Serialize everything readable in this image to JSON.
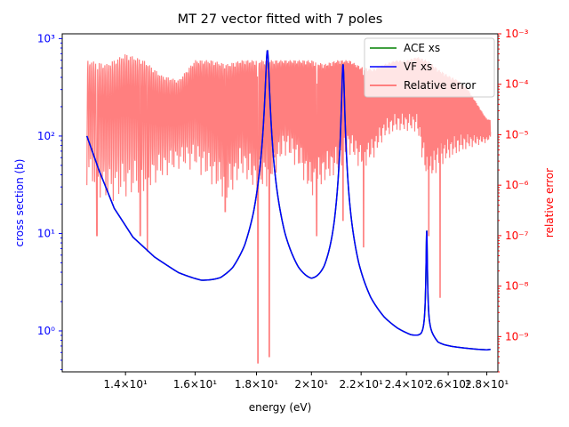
{
  "chart_data": {
    "type": "line",
    "title": "MT 27 vector fitted with 7 poles",
    "xlabel": "energy (eV)",
    "ylabel_left": "cross section (b)",
    "ylabel_right": "relative error",
    "x_scale": "log",
    "y_left_scale": "log",
    "y_right_scale": "log",
    "xlim": [
      12.4,
      28.6
    ],
    "ylim_left": [
      0.38,
      1120
    ],
    "ylim_right": [
      2e-10,
      0.001
    ],
    "left_axis_color": "#0000ff",
    "right_axis_color": "#ff0000",
    "x_ticks": [
      {
        "value": 14,
        "label": "1.4×10¹"
      },
      {
        "value": 16,
        "label": "1.6×10¹"
      },
      {
        "value": 18,
        "label": "1.8×10¹"
      },
      {
        "value": 20,
        "label": "2×10¹"
      },
      {
        "value": 22,
        "label": "2.2×10¹"
      },
      {
        "value": 24,
        "label": "2.4×10¹"
      },
      {
        "value": 26,
        "label": "2.6×10¹"
      },
      {
        "value": 28,
        "label": "2.8×10¹"
      }
    ],
    "y_left_ticks": [
      {
        "value": 1,
        "label": "10⁰"
      },
      {
        "value": 10,
        "label": "10¹"
      },
      {
        "value": 100,
        "label": "10²"
      },
      {
        "value": 1000,
        "label": "10³"
      }
    ],
    "y_right_ticks": [
      {
        "value": 1e-09,
        "label": "10⁻⁹"
      },
      {
        "value": 1e-08,
        "label": "10⁻⁸"
      },
      {
        "value": 1e-07,
        "label": "10⁻⁷"
      },
      {
        "value": 1e-06,
        "label": "10⁻⁶"
      },
      {
        "value": 1e-05,
        "label": "10⁻⁵"
      },
      {
        "value": 0.0001,
        "label": "10⁻⁴"
      },
      {
        "value": 0.001,
        "label": "10⁻³"
      }
    ],
    "legend": {
      "placement": "upper-right",
      "entries": [
        {
          "name": "ACE xs",
          "color": "#008000"
        },
        {
          "name": "VF xs",
          "color": "#0000ff"
        },
        {
          "name": "Relative error",
          "color": "#ff0000"
        }
      ]
    },
    "xs_baseline": {
      "x": [
        13.0,
        13.3,
        13.7,
        14.2,
        14.8,
        15.5,
        16.2,
        16.8,
        17.2,
        17.6,
        17.9,
        18.1,
        18.3,
        18.6,
        19.0,
        19.5,
        20.0,
        20.5,
        20.9,
        21.2,
        21.5,
        21.9,
        22.4,
        23.0,
        23.6,
        24.2,
        24.7,
        25.1,
        25.5,
        25.8,
        26.2,
        26.8,
        27.5,
        28.0,
        28.2
      ],
      "y": [
        100,
        45,
        18,
        9,
        5.5,
        3.6,
        2.7,
        2.4,
        2.5,
        3.2,
        5.2,
        9.5,
        20,
        7,
        3.2,
        2.0,
        1.6,
        1.7,
        2.4,
        5.5,
        3.0,
        1.6,
        1.05,
        0.82,
        0.72,
        0.67,
        0.68,
        0.78,
        0.62,
        0.6,
        0.59,
        0.585,
        0.58,
        0.58,
        0.59
      ]
    },
    "resonances": [
      {
        "energy": 18.38,
        "peak": 740,
        "width": 0.12
      },
      {
        "energy": 21.25,
        "peak": 540,
        "width": 0.1
      },
      {
        "energy": 24.95,
        "peak": 10,
        "width": 0.05
      }
    ],
    "relative_error_envelope": {
      "x": [
        13.0,
        13.5,
        14.0,
        14.5,
        15.0,
        15.5,
        16.0,
        16.5,
        17.0,
        17.5,
        18.0,
        18.5,
        19.0,
        19.5,
        20.0,
        20.5,
        21.0,
        21.5,
        22.0,
        22.5,
        23.0,
        23.5,
        24.0,
        24.5,
        25.0,
        25.5,
        26.0,
        26.5,
        27.0,
        27.5,
        28.0,
        28.2
      ],
      "upper": [
        0.0003,
        0.00025,
        0.0004,
        0.0003,
        0.00015,
        0.00012,
        0.0003,
        0.0003,
        0.00025,
        0.0003,
        0.0003,
        0.0003,
        0.0003,
        0.0003,
        0.0003,
        0.00025,
        0.0003,
        0.0003,
        0.00022,
        0.0002,
        0.00025,
        0.0003,
        0.0003,
        0.00035,
        0.0003,
        0.0002,
        0.00015,
        0.00012,
        8e-05,
        4e-05,
        2e-05,
        2e-05
      ],
      "floor": [
        1e-06,
        4e-07,
        5e-07,
        6e-07,
        1.2e-06,
        2e-06,
        2e-06,
        1e-06,
        4e-07,
        1.5e-06,
        6e-07,
        1e-06,
        4e-06,
        2e-06,
        5e-07,
        1e-06,
        1.5e-06,
        4e-06,
        2e-06,
        3e-06,
        8e-06,
        1.1e-05,
        1.1e-05,
        1.1e-05,
        8e-07,
        2e-06,
        3e-06,
        4e-06,
        5e-06,
        6e-06,
        7e-06,
        8e-06
      ],
      "dips": [
        {
          "x": 13.25,
          "y": 1e-07
        },
        {
          "x": 14.4,
          "y": 1e-07
        },
        {
          "x": 14.6,
          "y": 5e-08
        },
        {
          "x": 16.95,
          "y": 3e-07
        },
        {
          "x": 18.05,
          "y": 3e-10
        },
        {
          "x": 18.45,
          "y": 4e-10
        },
        {
          "x": 20.2,
          "y": 1e-07
        },
        {
          "x": 21.25,
          "y": 2e-07
        },
        {
          "x": 22.1,
          "y": 6e-08
        },
        {
          "x": 25.05,
          "y": 1e-07
        },
        {
          "x": 25.6,
          "y": 6e-09
        }
      ]
    }
  }
}
